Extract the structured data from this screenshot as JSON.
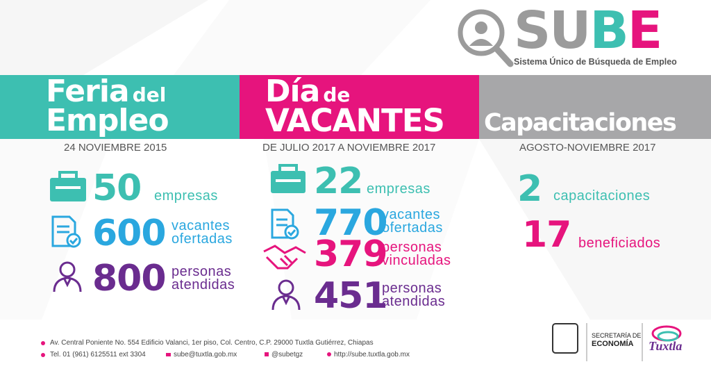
{
  "logo": {
    "brand": [
      "SU",
      "B",
      "E"
    ],
    "tagline": "Sistema Único de Búsqueda de Empleo"
  },
  "sections": [
    {
      "title": [
        "Feria",
        "del",
        "Empleo"
      ],
      "date": "24 NOVIEMBRE 2015",
      "stats": [
        {
          "value": 50,
          "label": [
            "empresas"
          ]
        },
        {
          "value": 600,
          "label": [
            "vacantes",
            "ofertadas"
          ]
        },
        {
          "value": 800,
          "label": [
            "personas",
            "atendidas"
          ]
        }
      ]
    },
    {
      "title": [
        "Día",
        "de",
        "VACANTES"
      ],
      "date": "DE JULIO 2017 A NOVIEMBRE 2017",
      "stats": [
        {
          "value": 22,
          "label": [
            "empresas"
          ]
        },
        {
          "value": 770,
          "label": [
            "vacantes",
            "ofertadas"
          ]
        },
        {
          "value": 379,
          "label": [
            "personas",
            "vinculadas"
          ]
        },
        {
          "value": 451,
          "label": [
            "personas",
            "atendidas"
          ]
        }
      ]
    },
    {
      "title": [
        "Capacitaciones"
      ],
      "date": "AGOSTO-NOVIEMBRE 2017",
      "stats": [
        {
          "value": 2,
          "label": [
            "capacitaciones"
          ]
        },
        {
          "value": 17,
          "label": [
            "beneficiados"
          ]
        }
      ]
    }
  ],
  "footer": {
    "address": "Av. Central Poniente No. 554 Edificio Valanci, 1er piso, Col. Centro, C.P. 29000 Tuxtla Gutiérrez, Chiapas",
    "phone": "Tel. 01 (961) 6125511 ext 3304",
    "email": "sube@tuxtla.gob.mx",
    "twitter": "@subetgz",
    "web": "http://sube.tuxtla.gob.mx"
  },
  "partners": {
    "secretaria": [
      "SECRETARÍA DE",
      "ECONOMÍA"
    ],
    "city": "Tuxtla"
  }
}
